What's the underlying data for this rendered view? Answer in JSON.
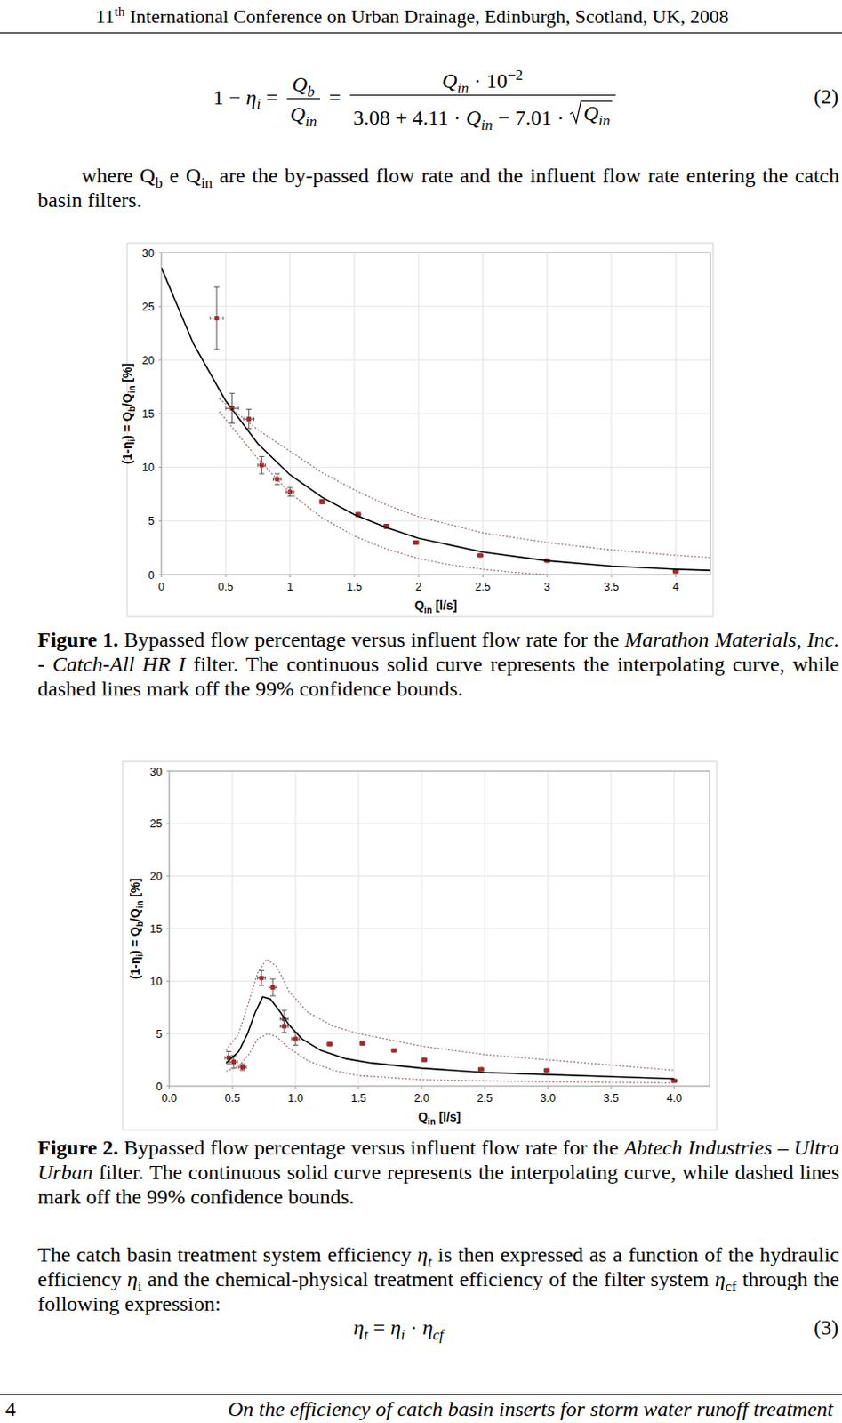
{
  "header": [
    {
      "t": "11"
    },
    {
      "t": "th",
      "sup": true
    },
    {
      "t": " International Conference on Urban Drainage, Edinburgh, Scotland, UK, 2008"
    }
  ],
  "equation_2": {
    "parts": [
      {
        "t": "1 − "
      },
      {
        "t": "η",
        "i": true
      },
      {
        "t": "i",
        "sub": true,
        "i": true
      },
      {
        "t": " = "
      },
      {
        "frac": {
          "num": [
            {
              "t": "Q",
              "i": true
            },
            {
              "t": "b",
              "sub": true,
              "i": true
            }
          ],
          "den": [
            {
              "t": "Q",
              "i": true
            },
            {
              "t": "in",
              "sub": true,
              "i": true
            }
          ]
        }
      },
      {
        "t": " = "
      },
      {
        "frac": {
          "num": [
            {
              "t": "Q",
              "i": true
            },
            {
              "t": "in",
              "sub": true,
              "i": true
            },
            {
              "t": " · 10"
            },
            {
              "t": "−2",
              "sup": true
            }
          ],
          "den": [
            {
              "t": "3.08 + 4.11 · "
            },
            {
              "t": "Q",
              "i": true
            },
            {
              "t": "in",
              "sub": true,
              "i": true
            },
            {
              "t": " − 7.01 · "
            },
            {
              "sqrt": [
                {
                  "t": "Q",
                  "i": true
                },
                {
                  "t": "in",
                  "sub": true,
                  "i": true
                }
              ]
            }
          ]
        }
      }
    ],
    "number": "(2)"
  },
  "paragraph_1": [
    {
      "t": "where Q"
    },
    {
      "t": "b",
      "sub": true
    },
    {
      "t": " e Q"
    },
    {
      "t": "in",
      "sub": true
    },
    {
      "t": " are the by-passed flow rate and the influent flow rate entering the catch basin filters."
    }
  ],
  "chart_data": [
    {
      "type": "scatter",
      "xlabel": [
        {
          "t": "Q"
        },
        {
          "t": "in",
          "sub": true
        },
        {
          "t": " [l/s]"
        }
      ],
      "ylabel": [
        {
          "t": "(1-η"
        },
        {
          "t": "i",
          "sub": true
        },
        {
          "t": ") = Q"
        },
        {
          "t": "b",
          "sub": true
        },
        {
          "t": "/Q"
        },
        {
          "t": "in",
          "sub": true
        },
        {
          "t": " [%]"
        }
      ],
      "xlim": [
        0,
        4.27
      ],
      "ylim": [
        0,
        30
      ],
      "xticks": [
        0,
        0.5,
        1,
        1.5,
        2,
        2.5,
        3,
        3.5,
        4
      ],
      "yticks": [
        0,
        5,
        10,
        15,
        20,
        25,
        30
      ],
      "grid": true,
      "series": [
        {
          "type": "scatter",
          "marker": "square",
          "color": "#b22222",
          "x": [
            0.43,
            0.55,
            0.68,
            0.78,
            0.9,
            1.0,
            1.25,
            1.53,
            1.75,
            1.98,
            2.48,
            3.0,
            4.0
          ],
          "values": [
            23.9,
            15.5,
            14.5,
            10.2,
            8.9,
            7.7,
            6.8,
            5.6,
            4.5,
            3.0,
            1.8,
            1.3,
            0.3
          ],
          "errors": [
            2.9,
            1.4,
            0.9,
            0.8,
            0.5,
            0.4,
            0.2,
            0.2,
            0.2,
            0.15,
            0.1,
            0.1,
            0.05
          ],
          "x_errors": [
            0.05,
            0.05,
            0.04,
            0.03,
            0.03,
            0.03,
            0.02,
            0.02,
            0.02,
            0.02,
            0.02,
            0.02,
            0.02
          ]
        },
        {
          "type": "line",
          "line_style": "solid",
          "color": "#000000",
          "x": [
            0,
            0.25,
            0.5,
            0.75,
            1,
            1.25,
            1.5,
            1.75,
            2,
            2.5,
            3,
            3.5,
            4,
            4.27
          ],
          "values": [
            28.6,
            21.5,
            16.2,
            12.2,
            9.3,
            7.2,
            5.6,
            4.4,
            3.4,
            2.1,
            1.3,
            0.8,
            0.5,
            0.4
          ]
        },
        {
          "type": "line",
          "line_style": "dotted",
          "color": "#a87878",
          "x": [
            0.45,
            0.75,
            1,
            1.25,
            1.5,
            1.75,
            2,
            2.5,
            3,
            3.5,
            4,
            4.27
          ],
          "values": [
            16.4,
            13.5,
            11.5,
            9.5,
            7.9,
            6.5,
            5.4,
            3.9,
            3.0,
            2.3,
            1.8,
            1.6
          ]
        },
        {
          "type": "line",
          "line_style": "dotted",
          "color": "#a87878",
          "x": [
            0.45,
            0.6,
            0.75,
            1,
            1.25,
            1.5,
            1.75,
            2,
            2.25,
            2.5,
            2.75,
            3
          ],
          "values": [
            15.2,
            13.0,
            10.8,
            7.6,
            5.3,
            3.6,
            2.4,
            1.5,
            0.9,
            0.5,
            0.2,
            0
          ]
        }
      ]
    },
    {
      "type": "scatter",
      "xlabel": [
        {
          "t": "Q"
        },
        {
          "t": "in",
          "sub": true
        },
        {
          "t": " [l/s]"
        }
      ],
      "ylabel": [
        {
          "t": "(1-η"
        },
        {
          "t": "i",
          "sub": true
        },
        {
          "t": ") = Q"
        },
        {
          "t": "b",
          "sub": true
        },
        {
          "t": "/Q"
        },
        {
          "t": "in",
          "sub": true
        },
        {
          "t": " [%]"
        }
      ],
      "xlim": [
        0,
        4.28
      ],
      "ylim": [
        0,
        30
      ],
      "xticks": [
        {
          "value": 0,
          "label": "0.0"
        },
        0.5,
        {
          "value": 1,
          "label": "1.0"
        },
        1.5,
        {
          "value": 2,
          "label": "2.0"
        },
        2.5,
        {
          "value": 3,
          "label": "3.0"
        },
        3.5,
        {
          "value": 4,
          "label": "4.0"
        }
      ],
      "yticks": [
        0,
        5,
        10,
        15,
        20,
        25,
        30
      ],
      "grid": true,
      "series": [
        {
          "type": "scatter",
          "marker": "square",
          "color": "#b22222",
          "x": [
            0.47,
            0.51,
            0.58,
            0.73,
            0.82,
            0.91,
            0.91,
            1.0,
            1.27,
            1.53,
            1.78,
            2.02,
            2.47,
            2.99,
            4.0
          ],
          "values": [
            2.7,
            2.3,
            1.8,
            10.3,
            9.4,
            6.4,
            5.7,
            4.5,
            4.0,
            4.1,
            3.4,
            2.5,
            1.6,
            1.5,
            0.5
          ],
          "errors": [
            0.6,
            0.6,
            0.3,
            0.7,
            0.8,
            0.8,
            0.6,
            0.6,
            0.15,
            0.2,
            0.1,
            0.15,
            0.1,
            0.1,
            0.1
          ],
          "x_errors": [
            0.03,
            0.03,
            0.03,
            0.03,
            0.03,
            0.03,
            0.03,
            0.03,
            0.02,
            0.02,
            0.02,
            0.02,
            0.02,
            0.02,
            0.02
          ]
        },
        {
          "type": "line",
          "line_style": "solid",
          "color": "#000000",
          "x": [
            0.45,
            0.55,
            0.62,
            0.68,
            0.74,
            0.8,
            0.87,
            0.95,
            1.05,
            1.2,
            1.4,
            1.6,
            2,
            2.5,
            3,
            3.5,
            4
          ],
          "values": [
            2.2,
            3.3,
            5.0,
            7.0,
            8.5,
            8.3,
            7.2,
            5.8,
            4.5,
            3.4,
            2.6,
            2.2,
            1.7,
            1.3,
            1.1,
            0.9,
            0.7
          ]
        },
        {
          "type": "line",
          "line_style": "dotted",
          "color": "#a87878",
          "x": [
            0.45,
            0.55,
            0.63,
            0.7,
            0.77,
            0.85,
            0.95,
            1.1,
            1.3,
            1.5,
            2,
            2.5,
            3,
            3.5,
            4
          ],
          "values": [
            3.4,
            5.0,
            8.0,
            10.8,
            12.1,
            11.4,
            9.0,
            7.0,
            5.7,
            5.0,
            3.8,
            3.0,
            2.5,
            2.0,
            1.5
          ]
        },
        {
          "type": "line",
          "line_style": "dotted",
          "color": "#a87878",
          "x": [
            0.45,
            0.55,
            0.63,
            0.7,
            0.78,
            0.85,
            0.95,
            1.1,
            1.3,
            1.5,
            2,
            2.5,
            3,
            4
          ],
          "values": [
            1.4,
            1.9,
            3.0,
            4.5,
            5.0,
            4.7,
            3.6,
            2.4,
            1.5,
            1.0,
            0.6,
            0.5,
            0.4,
            0.3
          ]
        }
      ]
    }
  ],
  "captions": [
    [
      {
        "t": "Figure 1.",
        "b": true
      },
      {
        "t": " Bypassed flow percentage versus influent flow rate for the "
      },
      {
        "t": "Marathon Materials, Inc. - Catch-All HR I",
        "i": true
      },
      {
        "t": " filter. The continuous solid curve represents the interpolating curve, while dashed lines mark off the 99% confidence bounds."
      }
    ],
    [
      {
        "t": "Figure 2.",
        "b": true
      },
      {
        "t": " Bypassed flow percentage versus influent flow rate for the "
      },
      {
        "t": "Abtech Industries – Ultra Urban",
        "i": true
      },
      {
        "t": " filter. The continuous solid curve represents the interpolating curve, while dashed lines mark off the 99% confidence bounds."
      }
    ]
  ],
  "paragraph_2": [
    {
      "t": "The catch basin treatment system efficiency "
    },
    {
      "t": "η",
      "i": true
    },
    {
      "t": "t",
      "sub": true,
      "i": true
    },
    {
      "t": " is then expressed as a function of the hydraulic efficiency "
    },
    {
      "t": "η",
      "i": true
    },
    {
      "t": "i",
      "sub": true
    },
    {
      "t": " and the chemical-physical treatment efficiency of the filter system "
    },
    {
      "t": "η",
      "i": true
    },
    {
      "t": "cf",
      "sub": true
    },
    {
      "t": " through the following expression:"
    }
  ],
  "equation_3": {
    "parts": [
      {
        "t": "η",
        "i": true
      },
      {
        "t": "t",
        "sub": true,
        "i": true
      },
      {
        "t": " = "
      },
      {
        "t": "η",
        "i": true
      },
      {
        "t": "i",
        "sub": true,
        "i": true
      },
      {
        "t": " · "
      },
      {
        "t": "η",
        "i": true
      },
      {
        "t": "cf",
        "sub": true,
        "i": true
      }
    ],
    "number": "(3)"
  },
  "footer": {
    "page": "4",
    "title": "On the efficiency of catch basin inserts for storm water runoff treatment"
  }
}
